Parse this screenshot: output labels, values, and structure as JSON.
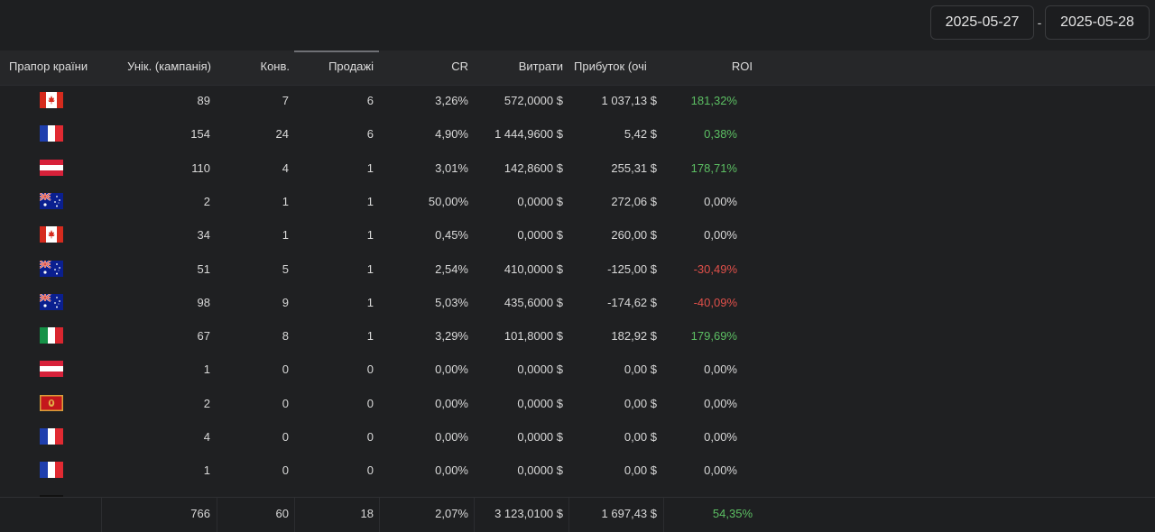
{
  "date_range": {
    "from": "2025-05-27",
    "separator": "-",
    "to": "2025-05-28"
  },
  "columns": {
    "flag": "Прапор країни",
    "unique": "Унік. (кампанія)",
    "conv": "Конв.",
    "sales": "Продажі",
    "cr": "CR",
    "costs": "Витрати",
    "profit": "Прибуток (очі",
    "roi": "ROI"
  },
  "rows": [
    {
      "flag": "canada-flag-icon",
      "unique": "89",
      "conv": "7",
      "sales": "6",
      "cr": "3,26%",
      "costs": "572,0000 $",
      "profit": "1 037,13 $",
      "roi": "181,32%",
      "roi_state": "pos"
    },
    {
      "flag": "france-flag-icon",
      "unique": "154",
      "conv": "24",
      "sales": "6",
      "cr": "4,90%",
      "costs": "1 444,9600 $",
      "profit": "5,42 $",
      "roi": "0,38%",
      "roi_state": "pos"
    },
    {
      "flag": "austria-flag-icon",
      "unique": "110",
      "conv": "4",
      "sales": "1",
      "cr": "3,01%",
      "costs": "142,8600 $",
      "profit": "255,31 $",
      "roi": "178,71%",
      "roi_state": "pos"
    },
    {
      "flag": "australia-flag-icon",
      "unique": "2",
      "conv": "1",
      "sales": "1",
      "cr": "50,00%",
      "costs": "0,0000 $",
      "profit": "272,06 $",
      "roi": "0,00%",
      "roi_state": "zero"
    },
    {
      "flag": "canada-flag-icon",
      "unique": "34",
      "conv": "1",
      "sales": "1",
      "cr": "0,45%",
      "costs": "0,0000 $",
      "profit": "260,00 $",
      "roi": "0,00%",
      "roi_state": "zero"
    },
    {
      "flag": "australia-flag-icon",
      "unique": "51",
      "conv": "5",
      "sales": "1",
      "cr": "2,54%",
      "costs": "410,0000 $",
      "profit": "-125,00 $",
      "roi": "-30,49%",
      "roi_state": "neg"
    },
    {
      "flag": "australia-flag-icon",
      "unique": "98",
      "conv": "9",
      "sales": "1",
      "cr": "5,03%",
      "costs": "435,6000 $",
      "profit": "-174,62 $",
      "roi": "-40,09%",
      "roi_state": "neg"
    },
    {
      "flag": "italy-flag-icon",
      "unique": "67",
      "conv": "8",
      "sales": "1",
      "cr": "3,29%",
      "costs": "101,8000 $",
      "profit": "182,92 $",
      "roi": "179,69%",
      "roi_state": "pos"
    },
    {
      "flag": "austria-flag-icon",
      "unique": "1",
      "conv": "0",
      "sales": "0",
      "cr": "0,00%",
      "costs": "0,0000 $",
      "profit": "0,00 $",
      "roi": "0,00%",
      "roi_state": "zero"
    },
    {
      "flag": "montenegro-flag-icon",
      "unique": "2",
      "conv": "0",
      "sales": "0",
      "cr": "0,00%",
      "costs": "0,0000 $",
      "profit": "0,00 $",
      "roi": "0,00%",
      "roi_state": "zero"
    },
    {
      "flag": "france-flag-icon",
      "unique": "4",
      "conv": "0",
      "sales": "0",
      "cr": "0,00%",
      "costs": "0,0000 $",
      "profit": "0,00 $",
      "roi": "0,00%",
      "roi_state": "zero"
    },
    {
      "flag": "france-flag-icon",
      "unique": "1",
      "conv": "0",
      "sales": "0",
      "cr": "0,00%",
      "costs": "0,0000 $",
      "profit": "0,00 $",
      "roi": "0,00%",
      "roi_state": "zero"
    }
  ],
  "totals": {
    "unique": "766",
    "conv": "60",
    "sales": "18",
    "cr": "2,07%",
    "costs": "3 123,0100 $",
    "profit": "1 697,43 $",
    "roi": "54,35%"
  },
  "colors": {
    "positive": "#5cbf63",
    "negative": "#e0504a",
    "background": "#1f2022",
    "header": "#262729"
  }
}
